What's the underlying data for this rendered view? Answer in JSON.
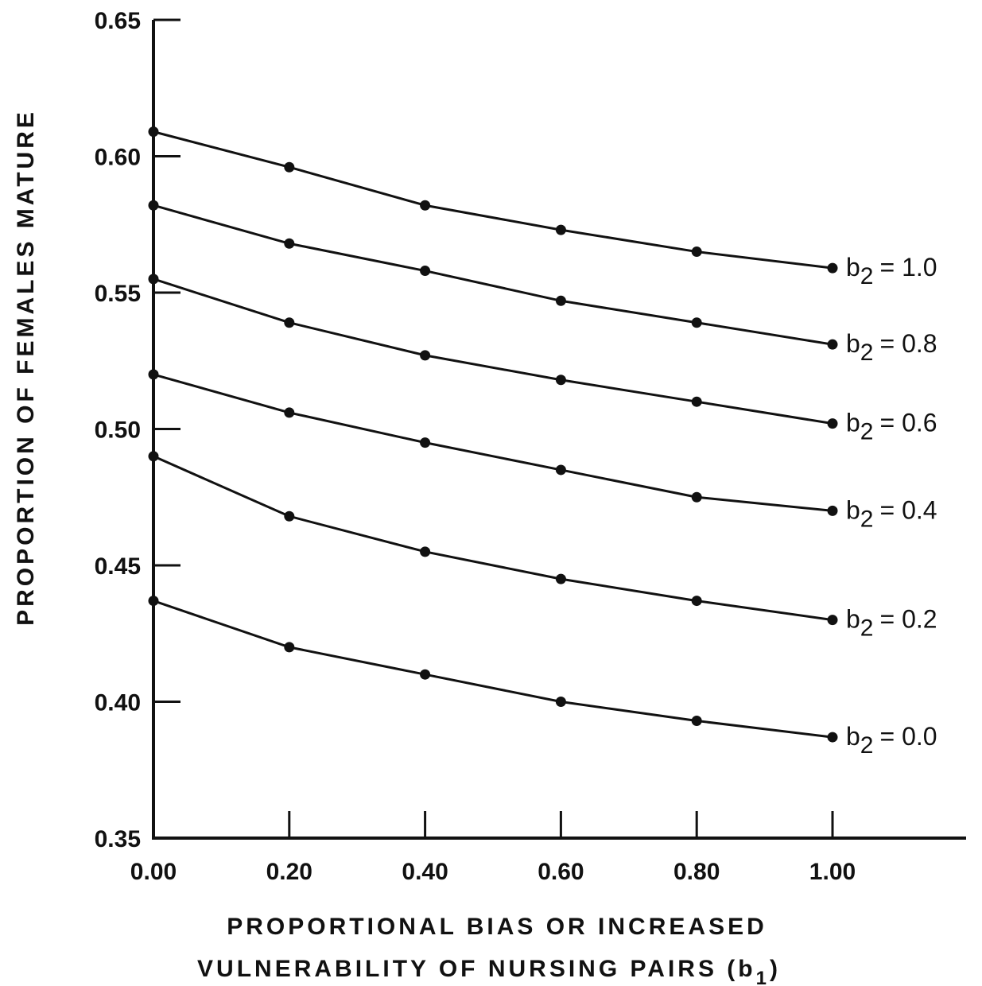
{
  "chart_data": {
    "type": "line",
    "title": "",
    "xlabel_lines": [
      "PROPORTIONAL BIAS OR INCREASED",
      "VULNERABILITY OF NURSING PAIRS (b",
      "1",
      ")"
    ],
    "ylabel": "PROPORTION OF FEMALES MATURE",
    "xlim": [
      0.0,
      1.2
    ],
    "ylim": [
      0.35,
      0.65
    ],
    "x_ticks": [
      "0.00",
      "0.20",
      "0.40",
      "0.60",
      "0.80",
      "1.00"
    ],
    "x_tick_values": [
      0.0,
      0.2,
      0.4,
      0.6,
      0.8,
      1.0
    ],
    "y_ticks": [
      "0.35",
      "0.40",
      "0.45",
      "0.50",
      "0.55",
      "0.60",
      "0.65"
    ],
    "y_tick_values": [
      0.35,
      0.4,
      0.45,
      0.5,
      0.55,
      0.6,
      0.65
    ],
    "grid": false,
    "legend": "inline-right",
    "x": [
      0.0,
      0.2,
      0.4,
      0.6,
      0.8,
      1.0
    ],
    "series": [
      {
        "name": "b2 = 1.0",
        "label_prefix": "b",
        "label_sub": "2",
        "label_suffix": "= 1.0",
        "values": [
          0.609,
          0.596,
          0.582,
          0.573,
          0.565,
          0.559
        ]
      },
      {
        "name": "b2 = 0.8",
        "label_prefix": "b",
        "label_sub": "2",
        "label_suffix": "= 0.8",
        "values": [
          0.582,
          0.568,
          0.558,
          0.547,
          0.539,
          0.531
        ]
      },
      {
        "name": "b2 = 0.6",
        "label_prefix": "b",
        "label_sub": "2",
        "label_suffix": "= 0.6",
        "values": [
          0.555,
          0.539,
          0.527,
          0.518,
          0.51,
          0.502
        ]
      },
      {
        "name": "b2 = 0.4",
        "label_prefix": "b",
        "label_sub": "2",
        "label_suffix": "= 0.4",
        "values": [
          0.52,
          0.506,
          0.495,
          0.485,
          0.475,
          0.47
        ]
      },
      {
        "name": "b2 = 0.2",
        "label_prefix": "b",
        "label_sub": "2",
        "label_suffix": "= 0.2",
        "values": [
          0.49,
          0.468,
          0.455,
          0.445,
          0.437,
          0.43
        ]
      },
      {
        "name": "b2 = 0.0",
        "label_prefix": "b",
        "label_sub": "2",
        "label_suffix": "= 0.0",
        "values": [
          0.437,
          0.42,
          0.41,
          0.4,
          0.393,
          0.387
        ]
      }
    ],
    "colors": {
      "ink": "#111111",
      "background": "#ffffff"
    }
  }
}
